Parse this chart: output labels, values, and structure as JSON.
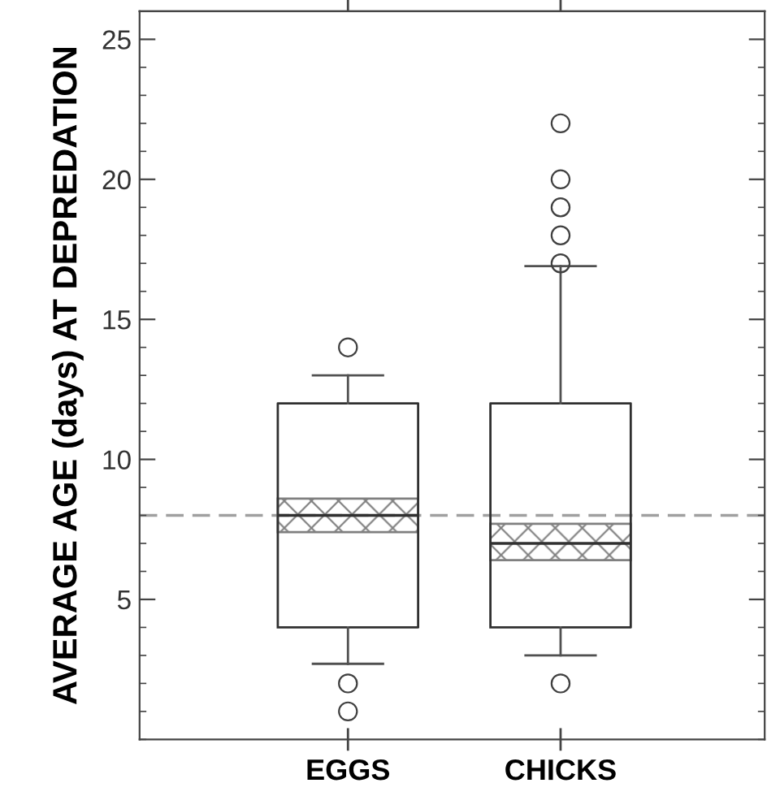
{
  "chart_data": {
    "type": "box",
    "ylabel": "AVERAGE AGE (days) AT DEPREDATION",
    "categories": [
      "EGGS",
      "CHICKS"
    ],
    "boxes": [
      {
        "low": 2.7,
        "q1": 4,
        "median": 8,
        "q3": 12,
        "high": 13,
        "outliers": [
          14,
          2,
          1
        ]
      },
      {
        "low": 3,
        "q1": 4,
        "median": 7,
        "q3": 12,
        "high": 16.9,
        "outliers": [
          22,
          20,
          19,
          18,
          17,
          2
        ]
      }
    ],
    "series": [
      {
        "type": "bar",
        "base": [
          7.4,
          6.4
        ],
        "values": [
          1.2,
          1.3
        ],
        "color": "#808080"
      }
    ],
    "ylim": [
      0,
      26
    ],
    "yticks": [
      5,
      10,
      15,
      20,
      25
    ],
    "ref_lines": [
      {
        "axis": "y",
        "value": 8,
        "color": "#a0a0a0",
        "line_style": "dashed"
      }
    ],
    "grid": false,
    "legend": false
  }
}
